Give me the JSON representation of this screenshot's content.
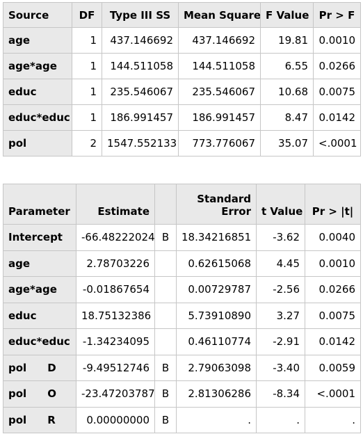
{
  "anova": {
    "headers": [
      "Source",
      "DF",
      "Type III SS",
      "Mean Square",
      "F Value",
      "Pr > F"
    ],
    "rows": [
      {
        "source": "age",
        "df": "1",
        "ss": "437.146692",
        "ms": "437.146692",
        "f": "19.81",
        "p": "0.0010"
      },
      {
        "source": "age*age",
        "df": "1",
        "ss": "144.511058",
        "ms": "144.511058",
        "f": "6.55",
        "p": "0.0266"
      },
      {
        "source": "educ",
        "df": "1",
        "ss": "235.546067",
        "ms": "235.546067",
        "f": "10.68",
        "p": "0.0075"
      },
      {
        "source": "educ*educ",
        "df": "1",
        "ss": "186.991457",
        "ms": "186.991457",
        "f": "8.47",
        "p": "0.0142"
      },
      {
        "source": "pol",
        "df": "2",
        "ss": "1547.552133",
        "ms": "773.776067",
        "f": "35.07",
        "p": "<.0001"
      }
    ]
  },
  "estimates": {
    "headers": {
      "parameter": "Parameter",
      "estimate": "Estimate",
      "se_line1": "Standard",
      "se_line2": "Error",
      "t": "t Value",
      "p": "Pr > |t|"
    },
    "rows": [
      {
        "param": "Intercept",
        "level": "",
        "estimate": "-66.48222024",
        "flag": "B",
        "se": "18.34216851",
        "t": "-3.62",
        "p": "0.0040"
      },
      {
        "param": "age",
        "level": "",
        "estimate": "2.78703226",
        "flag": "",
        "se": "0.62615068",
        "t": "4.45",
        "p": "0.0010"
      },
      {
        "param": "age*age",
        "level": "",
        "estimate": "-0.01867654",
        "flag": "",
        "se": "0.00729787",
        "t": "-2.56",
        "p": "0.0266"
      },
      {
        "param": "educ",
        "level": "",
        "estimate": "18.75132386",
        "flag": "",
        "se": "5.73910890",
        "t": "3.27",
        "p": "0.0075"
      },
      {
        "param": "educ*educ",
        "level": "",
        "estimate": "-1.34234095",
        "flag": "",
        "se": "0.46110774",
        "t": "-2.91",
        "p": "0.0142"
      },
      {
        "param": "pol",
        "level": "D",
        "estimate": "-9.49512746",
        "flag": "B",
        "se": "2.79063098",
        "t": "-3.40",
        "p": "0.0059"
      },
      {
        "param": "pol",
        "level": "O",
        "estimate": "-23.47203787",
        "flag": "B",
        "se": "2.81306286",
        "t": "-8.34",
        "p": "<.0001"
      },
      {
        "param": "pol",
        "level": "R",
        "estimate": "0.00000000",
        "flag": "B",
        "se": ".",
        "t": ".",
        "p": "."
      }
    ]
  }
}
